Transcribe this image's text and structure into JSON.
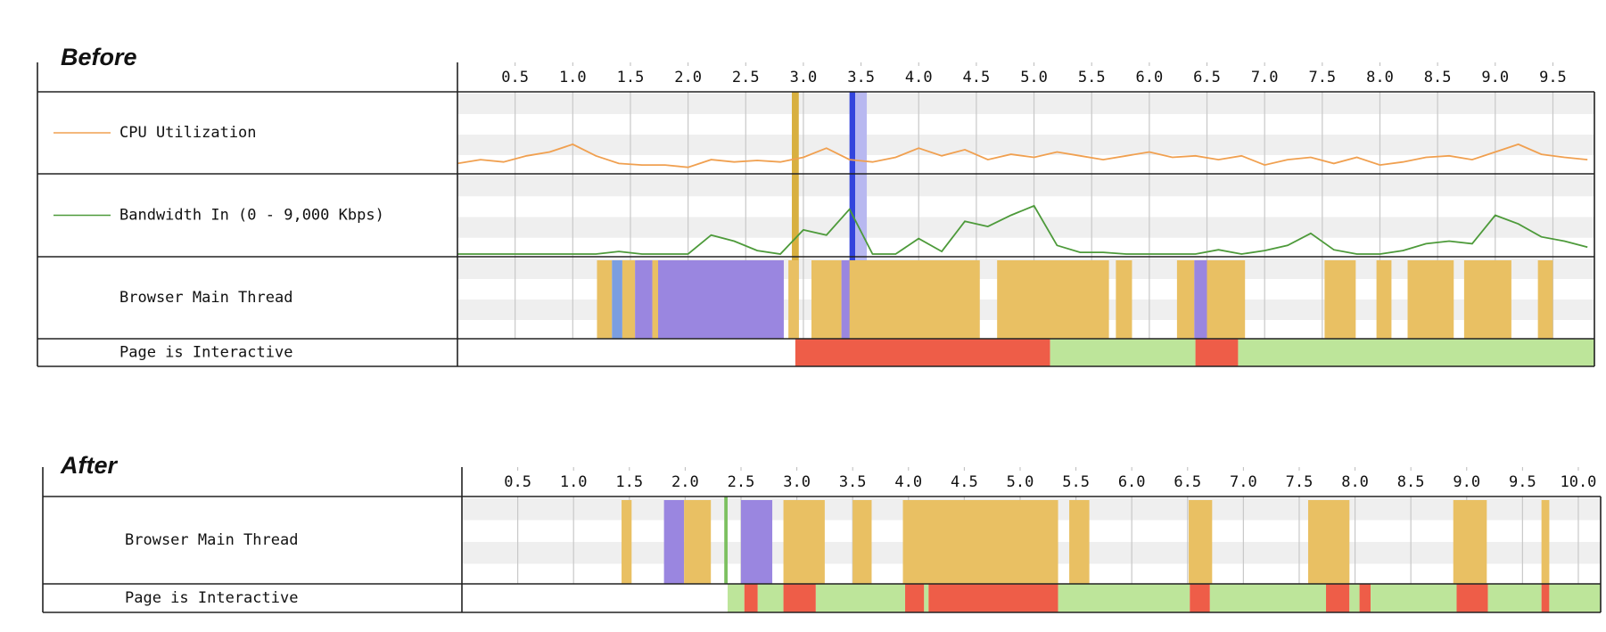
{
  "chart_data": [
    {
      "type": "timeline",
      "title": "Before",
      "xlim": [
        0,
        9.86
      ],
      "xticks": [
        0.5,
        {
          "value": 1,
          "label": "1.0"
        },
        1.5,
        {
          "value": 2,
          "label": "2.0"
        },
        2.5,
        {
          "value": 3,
          "label": "3.0"
        },
        3.5,
        {
          "value": 4,
          "label": "4.0"
        },
        4.5,
        {
          "value": 5,
          "label": "5.0"
        },
        5.5,
        {
          "value": 6,
          "label": "6.0"
        },
        6.5,
        {
          "value": 7,
          "label": "7.0"
        },
        7.5,
        {
          "value": 8,
          "label": "8.0"
        },
        8.5,
        {
          "value": 9,
          "label": "9.0"
        },
        9.5
      ],
      "rows": [
        {
          "type": "line",
          "label": "CPU Utilization",
          "color": "#f0a050",
          "ylim": [
            0,
            100
          ],
          "x": [
            0,
            0.2,
            0.4,
            0.6,
            0.8,
            1,
            1.2,
            1.4,
            1.6,
            1.8,
            2,
            2.2,
            2.4,
            2.6,
            2.8,
            3,
            3.2,
            3.4,
            3.6,
            3.8,
            4,
            4.2,
            4.4,
            4.6,
            4.8,
            5,
            5.2,
            5.4,
            5.6,
            5.8,
            6,
            6.2,
            6.4,
            6.6,
            6.8,
            7,
            7.2,
            7.4,
            7.6,
            7.8,
            8,
            8.2,
            8.4,
            8.6,
            8.8,
            9,
            9.2,
            9.4,
            9.6,
            9.8
          ],
          "values": [
            10,
            15,
            12,
            20,
            25,
            35,
            20,
            10,
            8,
            8,
            5,
            15,
            12,
            14,
            12,
            18,
            30,
            15,
            12,
            18,
            30,
            20,
            28,
            15,
            22,
            18,
            25,
            20,
            15,
            20,
            25,
            18,
            20,
            15,
            20,
            8,
            15,
            18,
            10,
            18,
            8,
            12,
            18,
            20,
            15,
            25,
            35,
            22,
            18,
            15
          ]
        },
        {
          "type": "line",
          "label": "Bandwidth In (0 - 9,000 Kbps)",
          "color": "#4d9a3a",
          "ylim": [
            0,
            9000
          ],
          "x": [
            0,
            0.2,
            0.4,
            0.6,
            0.8,
            1,
            1.2,
            1.4,
            1.6,
            1.8,
            2,
            2.2,
            2.4,
            2.6,
            2.8,
            3,
            3.2,
            3.4,
            3.6,
            3.8,
            4,
            4.2,
            4.4,
            4.6,
            4.8,
            5,
            5.2,
            5.4,
            5.6,
            5.8,
            6,
            6.2,
            6.4,
            6.6,
            6.8,
            7,
            7.2,
            7.4,
            7.6,
            7.8,
            8,
            8.2,
            8.4,
            8.6,
            8.8,
            9,
            9.2,
            9.4,
            9.6,
            9.8
          ],
          "values": [
            0,
            0,
            0,
            0,
            0,
            0,
            0,
            300,
            0,
            0,
            0,
            2200,
            1500,
            400,
            0,
            2800,
            2200,
            5200,
            0,
            0,
            1800,
            300,
            3800,
            3200,
            4500,
            5600,
            1000,
            200,
            200,
            0,
            0,
            0,
            0,
            500,
            0,
            400,
            1000,
            2400,
            500,
            0,
            0,
            400,
            1200,
            1500,
            1200,
            4500,
            3500,
            2000,
            1500,
            800
          ]
        },
        {
          "type": "spans",
          "label": "Browser Main Thread",
          "segments": [
            {
              "start": 1.21,
              "end": 1.34,
              "color": "#e9c063"
            },
            {
              "start": 1.34,
              "end": 1.43,
              "color": "#7b9ee0"
            },
            {
              "start": 1.43,
              "end": 1.54,
              "color": "#e9c063"
            },
            {
              "start": 1.54,
              "end": 1.69,
              "color": "#9a86e0"
            },
            {
              "start": 1.69,
              "end": 1.74,
              "color": "#e9c063"
            },
            {
              "start": 1.74,
              "end": 2.83,
              "color": "#9a86e0"
            },
            {
              "start": 2.87,
              "end": 2.96,
              "color": "#e9c063"
            },
            {
              "start": 3.07,
              "end": 3.33,
              "color": "#e9c063"
            },
            {
              "start": 3.33,
              "end": 3.4,
              "color": "#9a86e0"
            },
            {
              "start": 3.4,
              "end": 4.53,
              "color": "#e9c063"
            },
            {
              "start": 4.68,
              "end": 5.65,
              "color": "#e9c063"
            },
            {
              "start": 5.71,
              "end": 5.85,
              "color": "#e9c063"
            },
            {
              "start": 6.24,
              "end": 6.39,
              "color": "#e9c063"
            },
            {
              "start": 6.39,
              "end": 6.5,
              "color": "#9a86e0"
            },
            {
              "start": 6.5,
              "end": 6.83,
              "color": "#e9c063"
            },
            {
              "start": 7.52,
              "end": 7.79,
              "color": "#e9c063"
            },
            {
              "start": 7.97,
              "end": 8.1,
              "color": "#e9c063"
            },
            {
              "start": 8.24,
              "end": 8.64,
              "color": "#e9c063"
            },
            {
              "start": 8.73,
              "end": 9.14,
              "color": "#e9c063"
            },
            {
              "start": 9.37,
              "end": 9.5,
              "color": "#e9c063"
            }
          ]
        },
        {
          "type": "spans",
          "label": "Page is Interactive",
          "segments": [
            {
              "start": 2.93,
              "end": 5.14,
              "color": "#ee5d48"
            },
            {
              "start": 5.14,
              "end": 6.4,
              "color": "#bde59a"
            },
            {
              "start": 6.4,
              "end": 6.77,
              "color": "#ee5d48"
            },
            {
              "start": 6.77,
              "end": 9.86,
              "color": "#bde59a"
            }
          ]
        }
      ],
      "markers": [
        {
          "start": 2.9,
          "end": 2.96,
          "color": "#d8b040"
        },
        {
          "start": 3.4,
          "end": 3.45,
          "color": "#3344dd"
        },
        {
          "start": 3.45,
          "end": 3.55,
          "color": "#b8b8f0"
        }
      ]
    },
    {
      "type": "timeline",
      "title": "After",
      "xlim": [
        0,
        10.2
      ],
      "xticks": [
        0.5,
        {
          "value": 1,
          "label": "1.0"
        },
        1.5,
        {
          "value": 2,
          "label": "2.0"
        },
        2.5,
        {
          "value": 3,
          "label": "3.0"
        },
        3.5,
        {
          "value": 4,
          "label": "4.0"
        },
        4.5,
        {
          "value": 5,
          "label": "5.0"
        },
        5.5,
        {
          "value": 6,
          "label": "6.0"
        },
        6.5,
        {
          "value": 7,
          "label": "7.0"
        },
        7.5,
        {
          "value": 8,
          "label": "8.0"
        },
        8.5,
        {
          "value": 9,
          "label": "9.0"
        },
        9.5,
        {
          "value": 10,
          "label": "10.0"
        }
      ],
      "rows": [
        {
          "type": "spans",
          "label": "Browser Main Thread",
          "segments": [
            {
              "start": 1.43,
              "end": 1.52,
              "color": "#e9c063"
            },
            {
              "start": 1.81,
              "end": 1.99,
              "color": "#9a86e0"
            },
            {
              "start": 1.99,
              "end": 2.23,
              "color": "#e9c063"
            },
            {
              "start": 2.5,
              "end": 2.78,
              "color": "#9a86e0"
            },
            {
              "start": 2.88,
              "end": 3.25,
              "color": "#e9c063"
            },
            {
              "start": 3.5,
              "end": 3.67,
              "color": "#e9c063"
            },
            {
              "start": 3.95,
              "end": 5.34,
              "color": "#e9c063"
            },
            {
              "start": 5.44,
              "end": 5.62,
              "color": "#e9c063"
            },
            {
              "start": 6.51,
              "end": 6.72,
              "color": "#e9c063"
            },
            {
              "start": 7.58,
              "end": 7.95,
              "color": "#e9c063"
            },
            {
              "start": 8.88,
              "end": 9.18,
              "color": "#e9c063"
            },
            {
              "start": 9.67,
              "end": 9.74,
              "color": "#e9c063"
            }
          ]
        },
        {
          "type": "spans",
          "label": "Page is Interactive",
          "segments": [
            {
              "start": 2.38,
              "end": 2.53,
              "color": "#bde59a"
            },
            {
              "start": 2.53,
              "end": 2.65,
              "color": "#ee5d48"
            },
            {
              "start": 2.65,
              "end": 2.88,
              "color": "#bde59a"
            },
            {
              "start": 2.88,
              "end": 3.17,
              "color": "#ee5d48"
            },
            {
              "start": 3.17,
              "end": 3.97,
              "color": "#bde59a"
            },
            {
              "start": 3.97,
              "end": 4.14,
              "color": "#ee5d48"
            },
            {
              "start": 4.14,
              "end": 4.18,
              "color": "#bde59a"
            },
            {
              "start": 4.18,
              "end": 5.34,
              "color": "#ee5d48"
            },
            {
              "start": 5.34,
              "end": 6.52,
              "color": "#bde59a"
            },
            {
              "start": 6.52,
              "end": 6.7,
              "color": "#ee5d48"
            },
            {
              "start": 6.7,
              "end": 7.74,
              "color": "#bde59a"
            },
            {
              "start": 7.74,
              "end": 7.95,
              "color": "#ee5d48"
            },
            {
              "start": 7.95,
              "end": 8.04,
              "color": "#bde59a"
            },
            {
              "start": 8.04,
              "end": 8.14,
              "color": "#ee5d48"
            },
            {
              "start": 8.14,
              "end": 8.91,
              "color": "#bde59a"
            },
            {
              "start": 8.91,
              "end": 9.19,
              "color": "#ee5d48"
            },
            {
              "start": 9.19,
              "end": 9.67,
              "color": "#bde59a"
            },
            {
              "start": 9.67,
              "end": 9.74,
              "color": "#ee5d48"
            },
            {
              "start": 9.74,
              "end": 10.2,
              "color": "#bde59a"
            }
          ]
        }
      ],
      "markers": [
        {
          "start": 2.35,
          "end": 2.38,
          "color": "#7cc060"
        }
      ]
    }
  ]
}
